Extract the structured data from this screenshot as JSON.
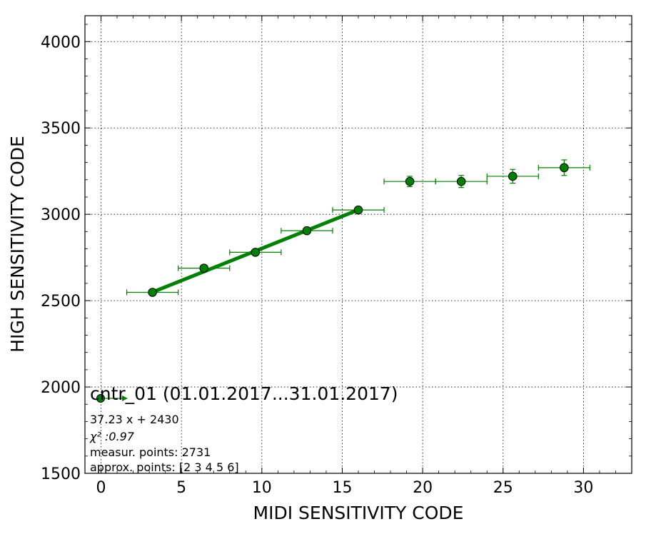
{
  "chart_data": {
    "type": "scatter",
    "xlabel": "MIDI SENSITIVITY CODE",
    "ylabel": "HIGH SENSITIVITY CODE",
    "xlim": [
      -1,
      33
    ],
    "ylim": [
      1500,
      4150
    ],
    "xticks": [
      0,
      5,
      10,
      15,
      20,
      25,
      30
    ],
    "yticks": [
      1500,
      2000,
      2500,
      3000,
      3500,
      4000
    ],
    "grid": true,
    "minor_ticks": true,
    "series_color": "#008000",
    "points": [
      {
        "x": 3.2,
        "y": 2548,
        "xerr": 1.6,
        "yerr": 10
      },
      {
        "x": 6.4,
        "y": 2688,
        "xerr": 1.6,
        "yerr": 18
      },
      {
        "x": 9.6,
        "y": 2780,
        "xerr": 1.6,
        "yerr": 15
      },
      {
        "x": 12.8,
        "y": 2905,
        "xerr": 1.6,
        "yerr": 15
      },
      {
        "x": 16.0,
        "y": 3025,
        "xerr": 1.6,
        "yerr": 15
      },
      {
        "x": 19.2,
        "y": 3190,
        "xerr": 1.6,
        "yerr": 30
      },
      {
        "x": 22.4,
        "y": 3190,
        "xerr": 1.6,
        "yerr": 35
      },
      {
        "x": 25.6,
        "y": 3220,
        "xerr": 1.6,
        "yerr": 40
      },
      {
        "x": 28.8,
        "y": 3270,
        "xerr": 1.6,
        "yerr": 45
      }
    ],
    "fit": {
      "slope": 37.23,
      "intercept": 2430,
      "x_range": [
        3.2,
        16.0
      ]
    },
    "legend": {
      "label": "cntr_01 (01.01.2017...31.01.2017)",
      "placement": "lower-left"
    },
    "annotations": [
      "37.23 x + 2430",
      "χ² :0.97",
      "measur. points: 2731",
      "approx. points: [2 3 4 5 6]"
    ]
  }
}
